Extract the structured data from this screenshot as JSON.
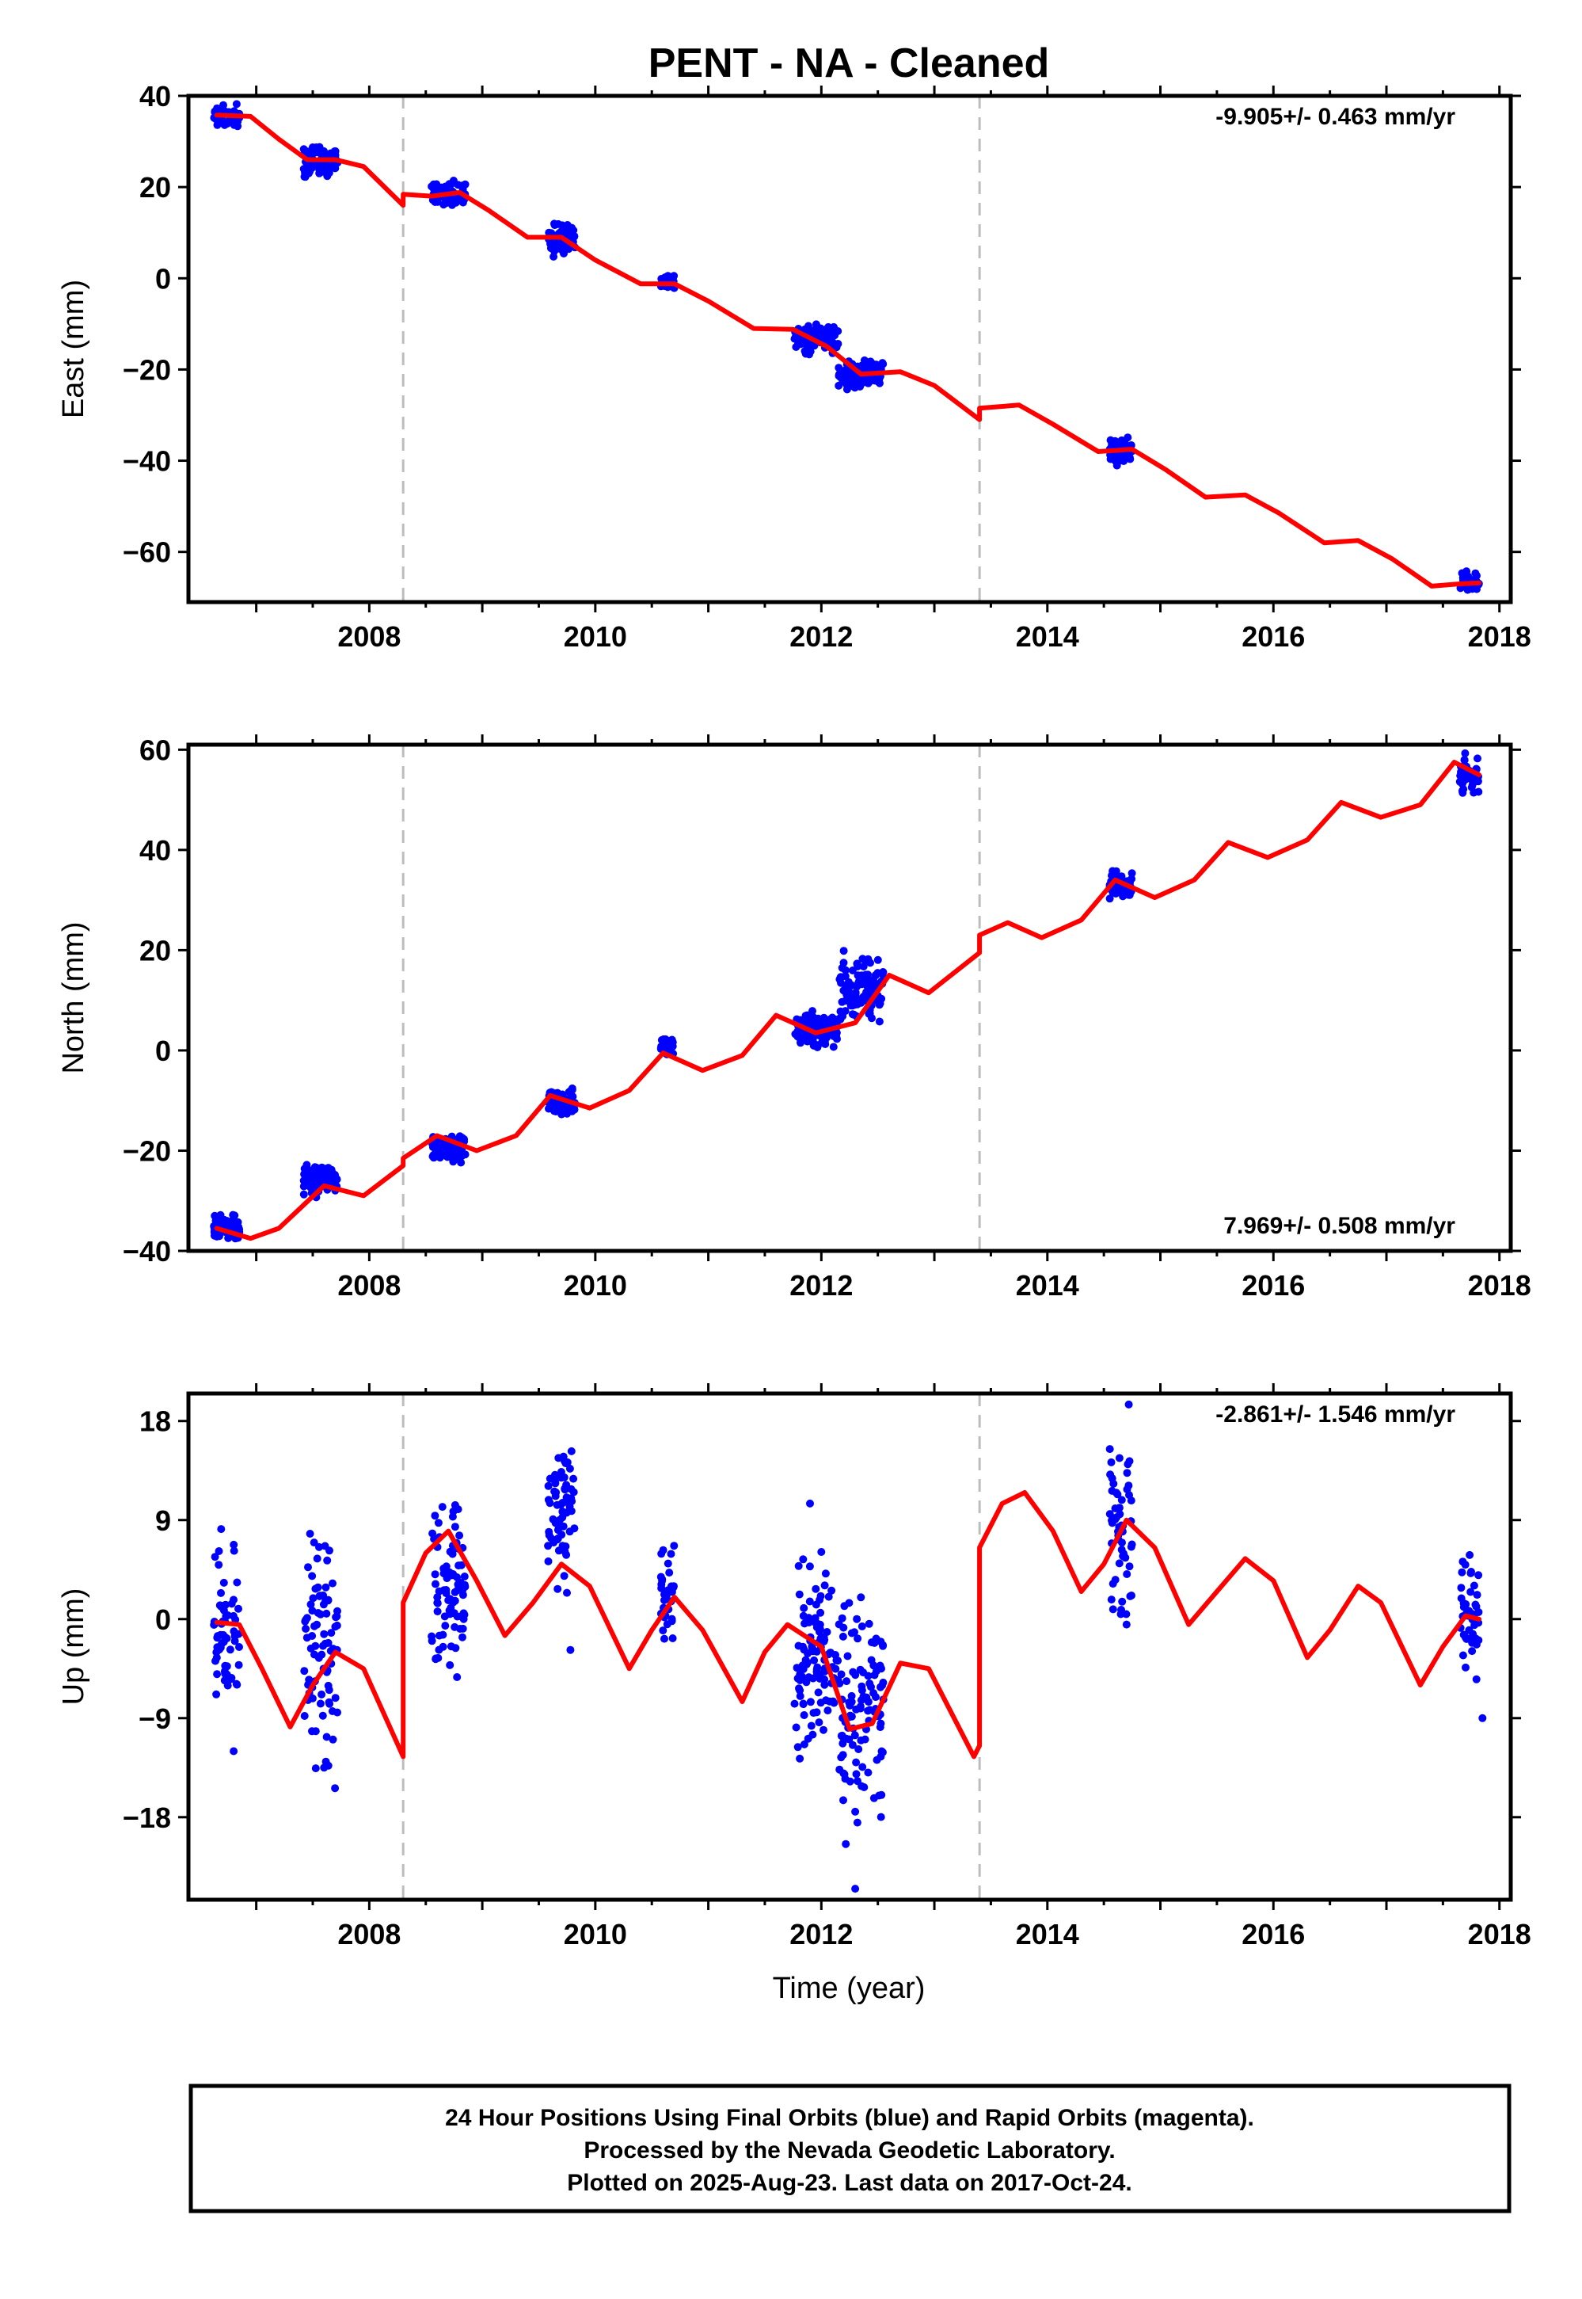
{
  "title": "PENT  - NA - Cleaned",
  "xlabel": "Time (year)",
  "footer": {
    "line1": "24 Hour Positions Using Final Orbits (blue) and Rapid Orbits (magenta).",
    "line2": "Processed by the Nevada Geodetic Laboratory.",
    "line3": "Plotted on 2025-Aug-23. Last data on 2017-Oct-24."
  },
  "colors": {
    "observations": "#0000ff",
    "model": "#ff0000",
    "steps": "#bdbdbd",
    "frame": "#000000"
  },
  "chart_data": [
    {
      "type": "scatter",
      "ylabel": "East (mm)",
      "rate_text": "-9.905+/- 0.463 mm/yr",
      "xlim": [
        2006.4,
        2018.1
      ],
      "ylim": [
        -71,
        40
      ],
      "xticks": [
        2008,
        2010,
        2012,
        2014,
        2016,
        2018
      ],
      "yticks": [
        40,
        20,
        0,
        -20,
        -40,
        -60
      ],
      "steps": [
        2008.3,
        2013.4
      ],
      "grid": false,
      "observation_clusters": [
        {
          "t0": 2006.62,
          "t1": 2006.85,
          "y": 35.5,
          "spread": 1.2
        },
        {
          "t0": 2007.42,
          "t1": 2007.72,
          "y": 25.5,
          "spread": 1.6
        },
        {
          "t0": 2008.55,
          "t1": 2008.85,
          "y": 18.5,
          "spread": 1.2
        },
        {
          "t0": 2009.58,
          "t1": 2009.82,
          "y": 9.0,
          "spread": 1.6
        },
        {
          "t0": 2010.58,
          "t1": 2010.7,
          "y": -0.5,
          "spread": 0.8
        },
        {
          "t0": 2011.76,
          "t1": 2012.15,
          "y": -13.0,
          "spread": 1.5
        },
        {
          "t0": 2012.15,
          "t1": 2012.55,
          "y": -21.0,
          "spread": 1.5
        },
        {
          "t0": 2014.55,
          "t1": 2014.75,
          "y": -37.8,
          "spread": 1.4
        },
        {
          "t0": 2017.65,
          "t1": 2017.82,
          "y": -66.5,
          "spread": 0.9
        }
      ],
      "model": [
        [
          2006.65,
          35.8
        ],
        [
          2006.95,
          35.5
        ],
        [
          2007.2,
          30.5
        ],
        [
          2007.45,
          26.0
        ],
        [
          2007.7,
          26.0
        ],
        [
          2007.95,
          24.5
        ],
        [
          2008.3,
          16.0
        ],
        [
          2008.3,
          18.4
        ],
        [
          2008.55,
          18.0
        ],
        [
          2008.8,
          18.8
        ],
        [
          2009.05,
          15.0
        ],
        [
          2009.4,
          9.0
        ],
        [
          2009.7,
          9.0
        ],
        [
          2010.0,
          4.0
        ],
        [
          2010.4,
          -1.2
        ],
        [
          2010.7,
          -1.2
        ],
        [
          2011.0,
          -5.0
        ],
        [
          2011.4,
          -11.0
        ],
        [
          2011.75,
          -11.2
        ],
        [
          2012.05,
          -15.0
        ],
        [
          2012.35,
          -21.0
        ],
        [
          2012.7,
          -20.5
        ],
        [
          2013.0,
          -23.5
        ],
        [
          2013.4,
          -31.0
        ],
        [
          2013.4,
          -28.5
        ],
        [
          2013.75,
          -27.8
        ],
        [
          2014.05,
          -32.0
        ],
        [
          2014.45,
          -38.0
        ],
        [
          2014.75,
          -37.5
        ],
        [
          2015.05,
          -42.0
        ],
        [
          2015.4,
          -48.0
        ],
        [
          2015.75,
          -47.5
        ],
        [
          2016.05,
          -51.5
        ],
        [
          2016.45,
          -58.0
        ],
        [
          2016.75,
          -57.5
        ],
        [
          2017.05,
          -61.5
        ],
        [
          2017.4,
          -67.5
        ],
        [
          2017.65,
          -67.0
        ],
        [
          2017.82,
          -66.8
        ]
      ]
    },
    {
      "type": "scatter",
      "ylabel": "North (mm)",
      "rate_text": "7.969+/- 0.508 mm/yr",
      "xlim": [
        2006.4,
        2018.1
      ],
      "ylim": [
        -40,
        61
      ],
      "xticks": [
        2008,
        2010,
        2012,
        2014,
        2016,
        2018
      ],
      "yticks": [
        60,
        40,
        20,
        0,
        -20,
        -40
      ],
      "steps": [
        2008.3,
        2013.4
      ],
      "grid": false,
      "observation_clusters": [
        {
          "t0": 2006.62,
          "t1": 2006.85,
          "y": -35.5,
          "spread": 1.4
        },
        {
          "t0": 2007.42,
          "t1": 2007.72,
          "y": -26.0,
          "spread": 1.5
        },
        {
          "t0": 2008.55,
          "t1": 2008.85,
          "y": -19.5,
          "spread": 1.3
        },
        {
          "t0": 2009.58,
          "t1": 2009.82,
          "y": -10.0,
          "spread": 1.3
        },
        {
          "t0": 2010.58,
          "t1": 2010.7,
          "y": 0.8,
          "spread": 1.0
        },
        {
          "t0": 2011.76,
          "t1": 2012.15,
          "y": 4.0,
          "spread": 1.5
        },
        {
          "t0": 2012.15,
          "t1": 2012.55,
          "y": 12.0,
          "spread": 3.0
        },
        {
          "t0": 2014.55,
          "t1": 2014.75,
          "y": 33.0,
          "spread": 1.3
        },
        {
          "t0": 2017.65,
          "t1": 2017.82,
          "y": 55.0,
          "spread": 1.8
        }
      ],
      "model": [
        [
          2006.65,
          -35.5
        ],
        [
          2006.95,
          -37.5
        ],
        [
          2007.2,
          -35.5
        ],
        [
          2007.6,
          -27.0
        ],
        [
          2007.95,
          -29.0
        ],
        [
          2008.3,
          -23.0
        ],
        [
          2008.3,
          -21.5
        ],
        [
          2008.6,
          -17.0
        ],
        [
          2008.95,
          -20.0
        ],
        [
          2009.3,
          -17.0
        ],
        [
          2009.6,
          -9.0
        ],
        [
          2009.95,
          -11.5
        ],
        [
          2010.3,
          -8.0
        ],
        [
          2010.6,
          -0.5
        ],
        [
          2010.95,
          -4.0
        ],
        [
          2011.3,
          -1.0
        ],
        [
          2011.6,
          7.0
        ],
        [
          2011.95,
          3.5
        ],
        [
          2012.3,
          5.5
        ],
        [
          2012.6,
          15.0
        ],
        [
          2012.95,
          11.5
        ],
        [
          2013.4,
          19.5
        ],
        [
          2013.4,
          23.0
        ],
        [
          2013.65,
          25.5
        ],
        [
          2013.95,
          22.5
        ],
        [
          2014.3,
          26.0
        ],
        [
          2014.6,
          34.0
        ],
        [
          2014.95,
          30.5
        ],
        [
          2015.3,
          34.0
        ],
        [
          2015.6,
          41.5
        ],
        [
          2015.95,
          38.5
        ],
        [
          2016.3,
          42.0
        ],
        [
          2016.6,
          49.5
        ],
        [
          2016.95,
          46.5
        ],
        [
          2017.3,
          49.0
        ],
        [
          2017.6,
          57.5
        ],
        [
          2017.82,
          55.0
        ]
      ]
    },
    {
      "type": "scatter",
      "ylabel": "Up (mm)",
      "rate_text": "-2.861+/- 1.546 mm/yr",
      "xlim": [
        2006.4,
        2018.1
      ],
      "ylim": [
        -25.5,
        20.5
      ],
      "xticks": [
        2008,
        2010,
        2012,
        2014,
        2016,
        2018
      ],
      "yticks": [
        18,
        9,
        0,
        -9,
        -18
      ],
      "steps": [
        2008.3,
        2013.4
      ],
      "grid": false,
      "observation_clusters": [
        {
          "t0": 2006.62,
          "t1": 2006.85,
          "y": -1.0,
          "spread": 4.0
        },
        {
          "t0": 2007.42,
          "t1": 2007.72,
          "y": -3.5,
          "spread": 5.0
        },
        {
          "t0": 2008.55,
          "t1": 2008.85,
          "y": 3.0,
          "spread": 3.5
        },
        {
          "t0": 2009.58,
          "t1": 2009.82,
          "y": 10.0,
          "spread": 3.0
        },
        {
          "t0": 2010.58,
          "t1": 2010.7,
          "y": 2.0,
          "spread": 2.5
        },
        {
          "t0": 2011.76,
          "t1": 2012.15,
          "y": -3.0,
          "spread": 4.0
        },
        {
          "t0": 2012.15,
          "t1": 2012.55,
          "y": -8.5,
          "spread": 4.5
        },
        {
          "t0": 2014.55,
          "t1": 2014.75,
          "y": 8.0,
          "spread": 4.0
        },
        {
          "t0": 2017.65,
          "t1": 2017.82,
          "y": 0.5,
          "spread": 2.5
        }
      ],
      "outliers": [
        [
          2012.3,
          -24.5
        ],
        [
          2011.9,
          10.5
        ],
        [
          2014.72,
          19.5
        ],
        [
          2017.85,
          -9.0
        ],
        [
          2006.8,
          -12.0
        ],
        [
          2007.6,
          -13.5
        ],
        [
          2009.78,
          -2.8
        ],
        [
          2012.3,
          -17.5
        ]
      ],
      "model": [
        [
          2006.65,
          -0.3
        ],
        [
          2006.85,
          -0.5
        ],
        [
          2007.05,
          -4.5
        ],
        [
          2007.3,
          -9.8
        ],
        [
          2007.5,
          -6.0
        ],
        [
          2007.7,
          -3.0
        ],
        [
          2007.95,
          -4.5
        ],
        [
          2008.3,
          -12.5
        ],
        [
          2008.3,
          1.5
        ],
        [
          2008.5,
          6.0
        ],
        [
          2008.7,
          8.0
        ],
        [
          2008.95,
          3.5
        ],
        [
          2009.2,
          -1.5
        ],
        [
          2009.45,
          1.5
        ],
        [
          2009.7,
          5.0
        ],
        [
          2009.95,
          3.0
        ],
        [
          2010.3,
          -4.5
        ],
        [
          2010.5,
          -1.0
        ],
        [
          2010.7,
          2.0
        ],
        [
          2010.95,
          -1.0
        ],
        [
          2011.3,
          -7.5
        ],
        [
          2011.5,
          -3.0
        ],
        [
          2011.7,
          -0.5
        ],
        [
          2012.0,
          -2.5
        ],
        [
          2012.25,
          -10.0
        ],
        [
          2012.45,
          -9.5
        ],
        [
          2012.7,
          -4.0
        ],
        [
          2012.95,
          -4.5
        ],
        [
          2013.35,
          -12.5
        ],
        [
          2013.4,
          -11.5
        ],
        [
          2013.4,
          6.5
        ],
        [
          2013.6,
          10.5
        ],
        [
          2013.8,
          11.5
        ],
        [
          2014.05,
          8.0
        ],
        [
          2014.3,
          2.5
        ],
        [
          2014.5,
          5.0
        ],
        [
          2014.7,
          9.0
        ],
        [
          2014.95,
          6.5
        ],
        [
          2015.25,
          -0.5
        ],
        [
          2015.5,
          2.5
        ],
        [
          2015.75,
          5.5
        ],
        [
          2016.0,
          3.5
        ],
        [
          2016.3,
          -3.5
        ],
        [
          2016.5,
          -1.0
        ],
        [
          2016.75,
          3.0
        ],
        [
          2016.95,
          1.5
        ],
        [
          2017.3,
          -6.0
        ],
        [
          2017.5,
          -2.5
        ],
        [
          2017.7,
          0.3
        ],
        [
          2017.82,
          0.0
        ]
      ]
    }
  ]
}
